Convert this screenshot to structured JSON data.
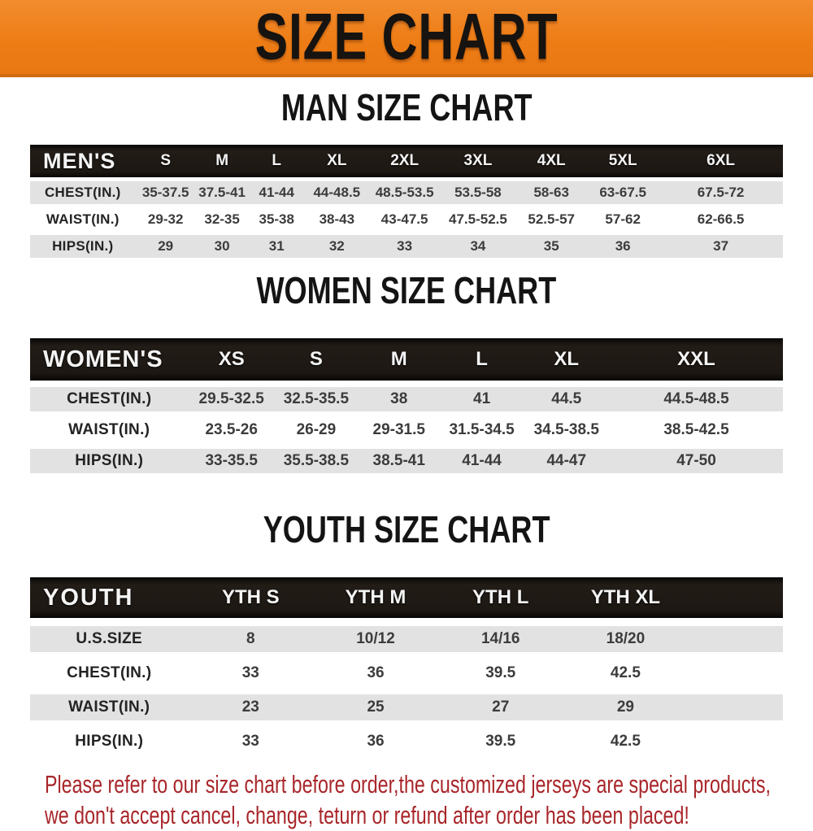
{
  "banner": {
    "title": "SIZE CHART"
  },
  "sections": [
    {
      "id": "men",
      "title": "MAN SIZE CHART",
      "table": {
        "label": "MEN'S",
        "columns": [
          "S",
          "M",
          "L",
          "XL",
          "2XL",
          "3XL",
          "4XL",
          "5XL",
          "6XL"
        ],
        "rows": [
          {
            "label": "CHEST(IN.)",
            "values": [
              "35-37.5",
              "37.5-41",
              "41-44",
              "44-48.5",
              "48.5-53.5",
              "53.5-58",
              "58-63",
              "63-67.5",
              "67.5-72"
            ]
          },
          {
            "label": "WAIST(IN.)",
            "values": [
              "29-32",
              "32-35",
              "35-38",
              "38-43",
              "43-47.5",
              "47.5-52.5",
              "52.5-57",
              "57-62",
              "62-66.5"
            ]
          },
          {
            "label": "HIPS(IN.)",
            "values": [
              "29",
              "30",
              "31",
              "32",
              "33",
              "34",
              "35",
              "36",
              "37"
            ]
          }
        ]
      }
    },
    {
      "id": "women",
      "title": "WOMEN SIZE CHART",
      "table": {
        "label": "WOMEN'S",
        "columns": [
          "XS",
          "S",
          "M",
          "L",
          "XL",
          "XXL"
        ],
        "rows": [
          {
            "label": "CHEST(IN.)",
            "values": [
              "29.5-32.5",
              "32.5-35.5",
              "38",
              "41",
              "44.5",
              "44.5-48.5"
            ]
          },
          {
            "label": "WAIST(IN.)",
            "values": [
              "23.5-26",
              "26-29",
              "29-31.5",
              "31.5-34.5",
              "34.5-38.5",
              "38.5-42.5"
            ]
          },
          {
            "label": "HIPS(IN.)",
            "values": [
              "33-35.5",
              "35.5-38.5",
              "38.5-41",
              "41-44",
              "44-47",
              "47-50"
            ]
          }
        ]
      }
    },
    {
      "id": "youth",
      "title": "YOUTH SIZE CHART",
      "table": {
        "label": "YOUTH",
        "columns": [
          "YTH S",
          "YTH M",
          "YTH L",
          "YTH XL"
        ],
        "rows": [
          {
            "label": "U.S.SIZE",
            "values": [
              "8",
              "10/12",
              "14/16",
              "18/20"
            ]
          },
          {
            "label": "CHEST(IN.)",
            "values": [
              "33",
              "36",
              "39.5",
              "42.5"
            ]
          },
          {
            "label": "WAIST(IN.)",
            "values": [
              "23",
              "25",
              "27",
              "29"
            ]
          },
          {
            "label": "HIPS(IN.)",
            "values": [
              "33",
              "36",
              "39.5",
              "42.5"
            ]
          }
        ]
      }
    }
  ],
  "footer": {
    "lines": [
      "Please refer to our size chart before order,the customized jerseys are special products,",
      "we don't accept cancel, change, teturn or refund after order has been placed!"
    ]
  },
  "colors": {
    "banner_orange": "#ee7d16",
    "header_bar_black": "#1d1813",
    "row_gray": "#e2e2e2",
    "disclaimer_red": "#a8262a",
    "title_black": "#141414"
  }
}
